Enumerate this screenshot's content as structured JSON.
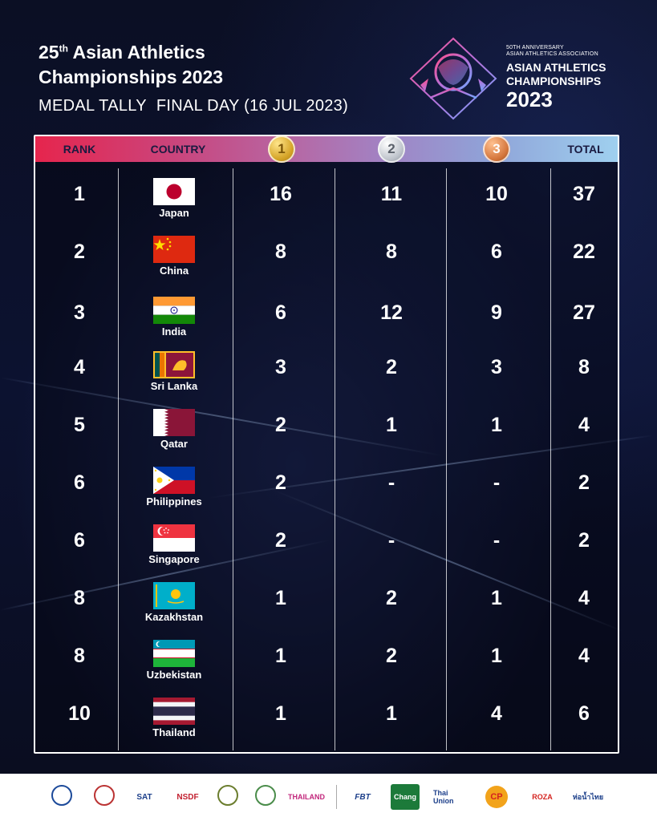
{
  "header": {
    "title_prefix": "25",
    "title_sup": "th",
    "title_line1_rest": " Asian Athletics",
    "title_line2": "Championships 2023",
    "subtitle_left": "MEDAL TALLY",
    "subtitle_right": "FINAL DAY (16 JUL 2023)"
  },
  "logo": {
    "small_line1": "50TH ANNIVERSARY",
    "small_line2": "ASIAN ATHLETICS ASSOCIATION",
    "big_line1": "ASIAN ATHLETICS",
    "big_line2": "CHAMPIONSHIPS",
    "year": "2023"
  },
  "table": {
    "headers": {
      "rank": "RANK",
      "country": "COUNTRY",
      "gold": "1",
      "silver": "2",
      "bronze": "3",
      "total": "TOTAL"
    },
    "rows": [
      {
        "rank": "1",
        "country": "Japan",
        "gold": "16",
        "silver": "11",
        "bronze": "10",
        "total": "37",
        "flag": "japan"
      },
      {
        "rank": "2",
        "country": "China",
        "gold": "8",
        "silver": "8",
        "bronze": "6",
        "total": "22",
        "flag": "china"
      },
      {
        "rank": "3",
        "country": "India",
        "gold": "6",
        "silver": "12",
        "bronze": "9",
        "total": "27",
        "flag": "india"
      },
      {
        "rank": "4",
        "country": "Sri Lanka",
        "gold": "3",
        "silver": "2",
        "bronze": "3",
        "total": "8",
        "flag": "sri-lanka"
      },
      {
        "rank": "5",
        "country": "Qatar",
        "gold": "2",
        "silver": "1",
        "bronze": "1",
        "total": "4",
        "flag": "qatar"
      },
      {
        "rank": "6",
        "country": "Philippines",
        "gold": "2",
        "silver": "-",
        "bronze": "-",
        "total": "2",
        "flag": "philippines"
      },
      {
        "rank": "6",
        "country": "Singapore",
        "gold": "2",
        "silver": "-",
        "bronze": "-",
        "total": "2",
        "flag": "singapore"
      },
      {
        "rank": "8",
        "country": "Kazakhstan",
        "gold": "1",
        "silver": "2",
        "bronze": "1",
        "total": "4",
        "flag": "kazakhstan"
      },
      {
        "rank": "8",
        "country": "Uzbekistan",
        "gold": "1",
        "silver": "2",
        "bronze": "1",
        "total": "4",
        "flag": "uzbekistan"
      },
      {
        "rank": "10",
        "country": "Thailand",
        "gold": "1",
        "silver": "1",
        "bronze": "4",
        "total": "6",
        "flag": "thailand"
      }
    ]
  },
  "sponsors": {
    "amazing_thailand": "THAILAND",
    "sat": "SAT",
    "nsdf": "NSDF",
    "fbt": "FBT",
    "chang": "Chang",
    "thai_union": "Thai Union",
    "cp": "CP",
    "roza": "ROZA",
    "last": "ห่อน้ำไทย"
  },
  "colors": {
    "header_gradient_start": "#e6254d",
    "header_gradient_end": "#9fd0ef",
    "gold": "#d4a326",
    "silver": "#bfc4cc",
    "bronze": "#d4763c",
    "background": "#0a0d1f"
  }
}
